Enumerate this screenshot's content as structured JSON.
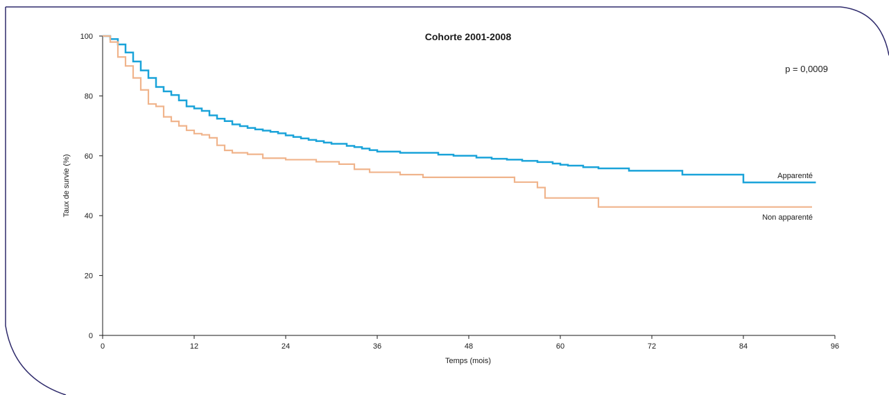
{
  "colors": {
    "frame": "#2e2a6b",
    "axis": "#1a1a1a",
    "apparente": "#1aa3d9",
    "non_apparente": "#f0b48c"
  },
  "chart_data": {
    "type": "line",
    "step": true,
    "title": "Cohorte 2001-2008",
    "xlabel": "Temps (mois)",
    "ylabel": "Taux de survie (%)",
    "xlim": [
      0,
      96
    ],
    "ylim": [
      0,
      100
    ],
    "xticks": [
      0,
      12,
      24,
      36,
      48,
      60,
      72,
      84,
      96
    ],
    "yticks": [
      0,
      20,
      40,
      60,
      80,
      100
    ],
    "annotation": "p = 0,0009",
    "grid": false,
    "series": [
      {
        "name": "Apparenté",
        "color": "#1aa3d9",
        "x": [
          0,
          1,
          2,
          3,
          4,
          5,
          6,
          7,
          8,
          9,
          10,
          11,
          12,
          13,
          14,
          15,
          16,
          17,
          18,
          19,
          20,
          21,
          22,
          23,
          24,
          25,
          26,
          27,
          28,
          29,
          30,
          32,
          33,
          34,
          35,
          36,
          39,
          41,
          44,
          46,
          49,
          51,
          53,
          55,
          57,
          59,
          60,
          61,
          63,
          65,
          69,
          76,
          84,
          93.5
        ],
        "y": [
          100,
          99,
          97.2,
          94.5,
          91.5,
          88.5,
          86,
          83,
          81.5,
          80.3,
          78.5,
          76.5,
          75.8,
          75,
          73.5,
          72.4,
          71.6,
          70.5,
          69.9,
          69.3,
          68.8,
          68.4,
          68,
          67.5,
          66.8,
          66.3,
          65.8,
          65.3,
          64.9,
          64.4,
          64,
          63.3,
          62.9,
          62.4,
          61.9,
          61.4,
          61,
          61,
          60.4,
          60,
          59.4,
          59,
          58.7,
          58.3,
          57.9,
          57.4,
          57,
          56.7,
          56.2,
          55.8,
          55,
          53.7,
          51.1,
          51.1
        ]
      },
      {
        "name": "Non apparenté",
        "color": "#f0b48c",
        "x": [
          0,
          1,
          2,
          3,
          4,
          5,
          6,
          7,
          8,
          9,
          10,
          11,
          12,
          13,
          14,
          15,
          16,
          17,
          19,
          21,
          24,
          28,
          31,
          33,
          35,
          39,
          42,
          54,
          57,
          58,
          65,
          93
        ],
        "y": [
          100,
          98,
          93,
          90,
          86,
          82,
          77.3,
          76.5,
          73,
          71.5,
          70,
          68.5,
          67.4,
          67,
          66,
          63.5,
          61.8,
          61,
          60.5,
          59.2,
          58.7,
          58,
          57.2,
          55.5,
          54.5,
          53.7,
          52.8,
          51.2,
          49.4,
          45.9,
          42.9,
          42.9
        ]
      }
    ]
  }
}
